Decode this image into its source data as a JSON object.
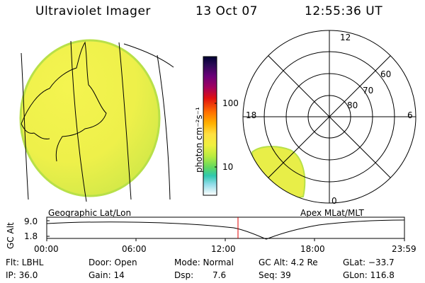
{
  "header": {
    "title": "Ultraviolet Imager",
    "date": "13 Oct 07",
    "time": "12:55:36 UT"
  },
  "colorbar": {
    "label": "photon cm⁻²s⁻¹",
    "ticks": [
      "100",
      "10"
    ],
    "scale": "log",
    "colors": [
      "#000033",
      "#2a0a55",
      "#550077",
      "#800070",
      "#b00040",
      "#e01010",
      "#ff6000",
      "#ffaa00",
      "#ffdd33",
      "#f0f040",
      "#ccf040",
      "#88e040",
      "#40d080",
      "#30c8c8",
      "#a0e0e8",
      "#ffffff"
    ]
  },
  "geo_panel": {
    "label": "Geographic Lat/Lon",
    "fill_color": "#eef04a"
  },
  "polar_panel": {
    "label": "Apex MLat/MLT",
    "mlt_labels": [
      "12",
      "18",
      "6",
      "0"
    ],
    "lat_labels": [
      "60",
      "70",
      "80"
    ]
  },
  "timeline": {
    "axis_label": "GC Alt",
    "y_ticks": [
      "9.0",
      "1.8"
    ],
    "x_ticks": [
      "00:00",
      "06:00",
      "12:00",
      "18:00",
      "23:59"
    ],
    "marker_time": "12:55",
    "marker_color": "#e00000"
  },
  "info": {
    "flt": "Flt: LBHL",
    "door": "Door: Open",
    "mode": "Mode: Normal",
    "gc_alt": "GC Alt: 4.2 Re",
    "glat": "GLat: −33.7",
    "ip": "IP: 36.0",
    "gain": "Gain: 14",
    "dsp_label": "Dsp:",
    "dsp_value": "7.6",
    "seq": "Seq: 39",
    "glon": "GLon: 116.8"
  }
}
